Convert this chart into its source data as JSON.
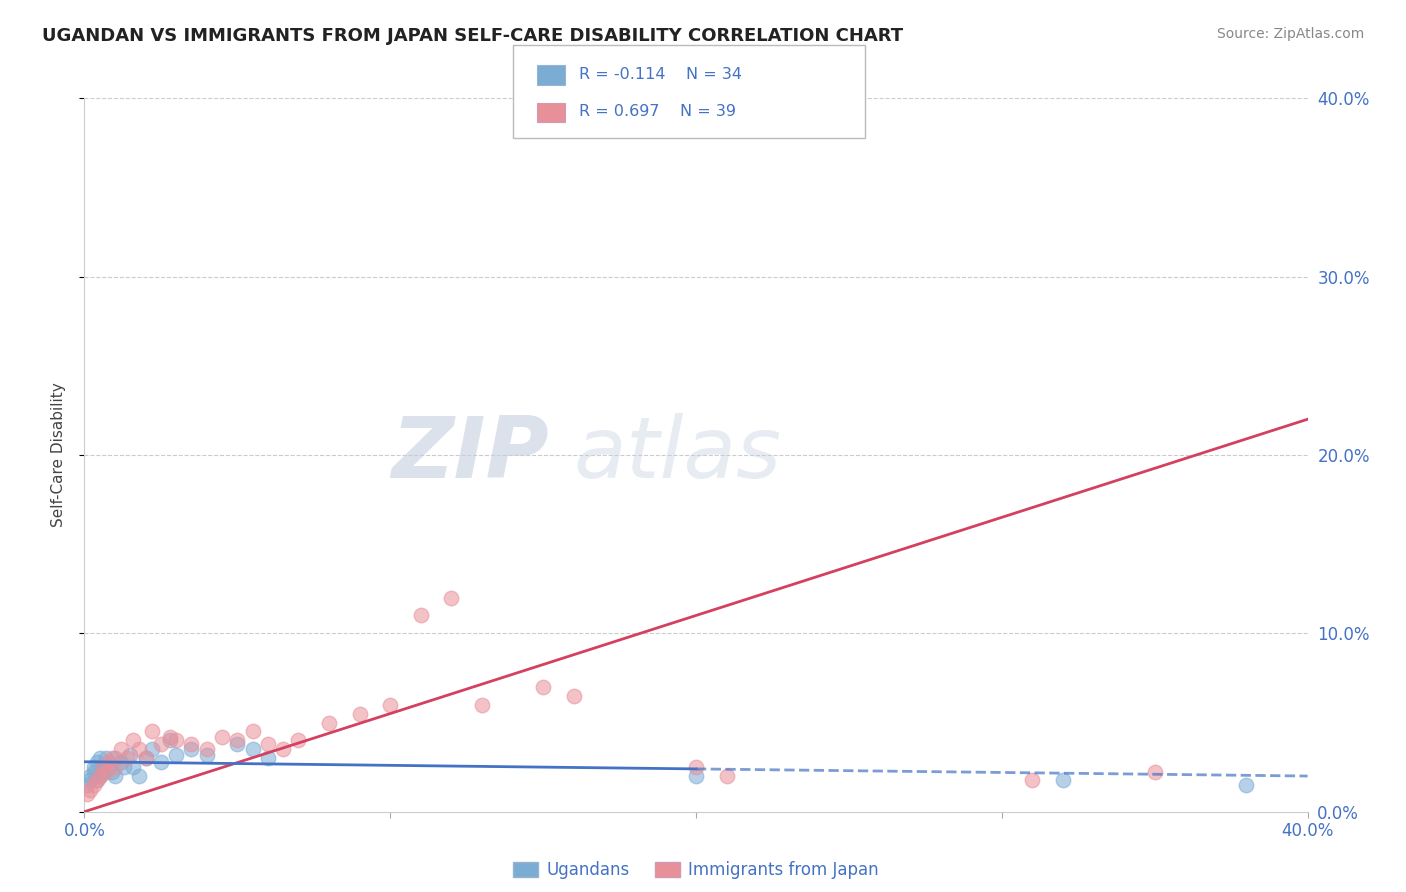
{
  "title": "UGANDAN VS IMMIGRANTS FROM JAPAN SELF-CARE DISABILITY CORRELATION CHART",
  "source": "Source: ZipAtlas.com",
  "ylabel": "Self-Care Disability",
  "xlim": [
    0.0,
    0.4
  ],
  "ylim": [
    0.0,
    0.4
  ],
  "xtick_vals": [
    0.0,
    0.4
  ],
  "ytick_vals": [
    0.0,
    0.1,
    0.2,
    0.3,
    0.4
  ],
  "grid_yticks": [
    0.1,
    0.2,
    0.3,
    0.4
  ],
  "blue_label": "Ugandans",
  "pink_label": "Immigrants from Japan",
  "blue_R": -0.114,
  "blue_N": 34,
  "pink_R": 0.697,
  "pink_N": 39,
  "blue_scatter_color": "#7bacd4",
  "pink_scatter_color": "#e8909a",
  "blue_line_color": "#4472c4",
  "pink_line_color": "#d44060",
  "label_color": "#4472c4",
  "grid_color": "#cccccc",
  "bg_color": "#ffffff",
  "watermark_zip": "ZIP",
  "watermark_atlas": "atlas",
  "blue_x": [
    0.001,
    0.002,
    0.002,
    0.003,
    0.003,
    0.004,
    0.004,
    0.005,
    0.005,
    0.006,
    0.006,
    0.007,
    0.008,
    0.009,
    0.01,
    0.01,
    0.012,
    0.013,
    0.015,
    0.016,
    0.018,
    0.02,
    0.022,
    0.025,
    0.028,
    0.03,
    0.035,
    0.04,
    0.05,
    0.055,
    0.06,
    0.2,
    0.32,
    0.38
  ],
  "blue_y": [
    0.015,
    0.02,
    0.018,
    0.022,
    0.025,
    0.018,
    0.028,
    0.02,
    0.03,
    0.022,
    0.025,
    0.03,
    0.025,
    0.022,
    0.03,
    0.02,
    0.028,
    0.025,
    0.032,
    0.025,
    0.02,
    0.03,
    0.035,
    0.028,
    0.04,
    0.032,
    0.035,
    0.032,
    0.038,
    0.035,
    0.03,
    0.02,
    0.018,
    0.015
  ],
  "pink_x": [
    0.001,
    0.002,
    0.003,
    0.004,
    0.005,
    0.006,
    0.007,
    0.008,
    0.009,
    0.01,
    0.012,
    0.014,
    0.016,
    0.018,
    0.02,
    0.022,
    0.025,
    0.028,
    0.03,
    0.035,
    0.04,
    0.045,
    0.05,
    0.055,
    0.06,
    0.065,
    0.07,
    0.08,
    0.09,
    0.1,
    0.11,
    0.12,
    0.13,
    0.15,
    0.16,
    0.2,
    0.21,
    0.31,
    0.35
  ],
  "pink_y": [
    0.01,
    0.012,
    0.015,
    0.018,
    0.02,
    0.025,
    0.022,
    0.028,
    0.03,
    0.025,
    0.035,
    0.03,
    0.04,
    0.035,
    0.03,
    0.045,
    0.038,
    0.042,
    0.04,
    0.038,
    0.035,
    0.042,
    0.04,
    0.045,
    0.038,
    0.035,
    0.04,
    0.05,
    0.055,
    0.06,
    0.11,
    0.12,
    0.06,
    0.07,
    0.065,
    0.025,
    0.02,
    0.018,
    0.022
  ],
  "pink_line_x0": 0.0,
  "pink_line_y0": 0.0,
  "pink_line_x1": 0.4,
  "pink_line_y1": 0.22,
  "blue_line_x0": 0.0,
  "blue_line_y0": 0.028,
  "blue_line_x1_solid": 0.2,
  "blue_line_x1": 0.4,
  "blue_line_y1": 0.02
}
